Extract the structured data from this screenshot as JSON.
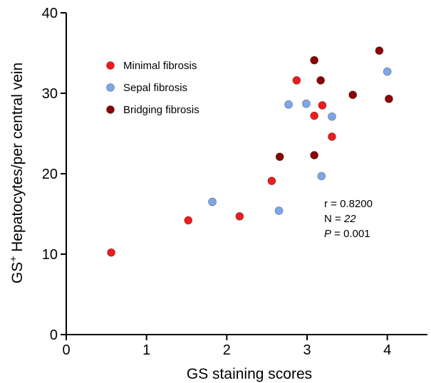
{
  "chart_data": {
    "type": "scatter",
    "title": "",
    "xlabel": "GS staining scores",
    "ylabel": {
      "prefix": "GS",
      "sup": "+",
      "rest": " Hepatocytes/per central vein"
    },
    "xlim": [
      0,
      4.5
    ],
    "ylim": [
      0,
      40
    ],
    "xticks": [
      0,
      1,
      2,
      3,
      4
    ],
    "yticks": [
      0,
      10,
      20,
      30,
      40
    ],
    "grid": false,
    "legend_position": "top-left",
    "series": [
      {
        "name": "Minimal fibrosis",
        "color": "#ee1c1c",
        "points": [
          {
            "x": 0.56,
            "y": 10.2
          },
          {
            "x": 1.52,
            "y": 14.2
          },
          {
            "x": 2.16,
            "y": 14.7
          },
          {
            "x": 2.56,
            "y": 19.1
          },
          {
            "x": 2.87,
            "y": 31.6
          },
          {
            "x": 3.09,
            "y": 27.2
          },
          {
            "x": 3.19,
            "y": 28.5
          },
          {
            "x": 3.31,
            "y": 24.6
          }
        ]
      },
      {
        "name": "Sepal fibrosis",
        "color": "#7da7ea",
        "points": [
          {
            "x": 1.82,
            "y": 16.5
          },
          {
            "x": 2.65,
            "y": 15.4
          },
          {
            "x": 2.77,
            "y": 28.6
          },
          {
            "x": 2.99,
            "y": 28.7
          },
          {
            "x": 3.18,
            "y": 19.7
          },
          {
            "x": 3.31,
            "y": 27.1
          },
          {
            "x": 4.0,
            "y": 32.7
          }
        ]
      },
      {
        "name": "Bridging fibrosis",
        "color": "#8b0000",
        "points": [
          {
            "x": 2.66,
            "y": 22.1
          },
          {
            "x": 3.09,
            "y": 22.3
          },
          {
            "x": 3.09,
            "y": 34.1
          },
          {
            "x": 3.17,
            "y": 31.6
          },
          {
            "x": 3.57,
            "y": 29.8
          },
          {
            "x": 3.9,
            "y": 35.3
          },
          {
            "x": 4.02,
            "y": 29.3
          }
        ]
      }
    ],
    "annotations": {
      "r": "r = 0.8200",
      "n_prefix": "N = ",
      "n_value": "22",
      "p_symbol": "P",
      "p_rest": " = 0.001"
    }
  }
}
